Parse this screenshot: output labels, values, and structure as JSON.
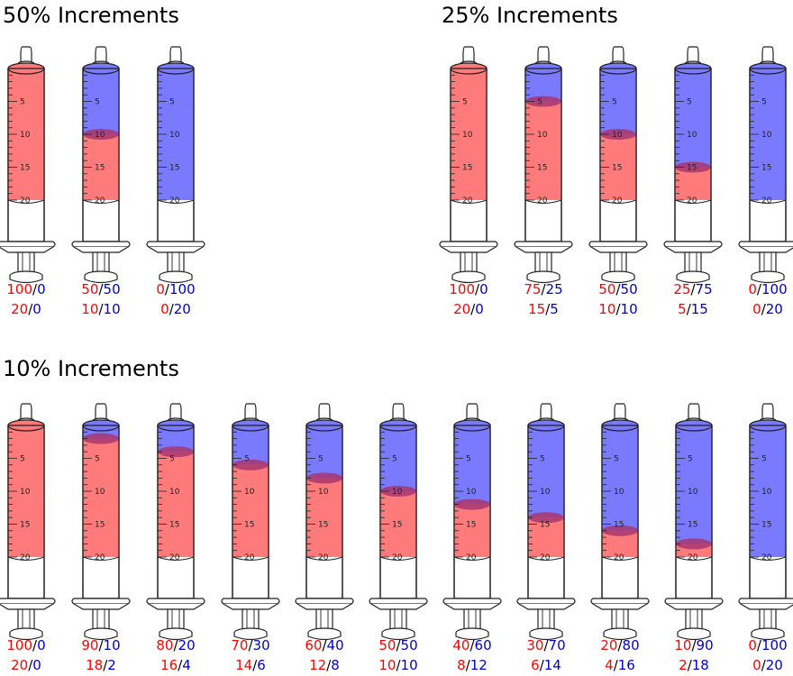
{
  "colors": {
    "red": "#ff0000",
    "blue": "#0000cc",
    "red_fill": "#ff7a7a",
    "blue_fill": "#7a7aff",
    "meniscus": "#a8376e"
  },
  "scale_labels": [
    "5",
    "10",
    "15",
    "20"
  ],
  "groups": [
    {
      "title": "50% Increments",
      "syringes": [
        {
          "red_pct": "100",
          "blue_pct": "0",
          "red_ml": "20",
          "blue_ml": "0"
        },
        {
          "red_pct": "50",
          "blue_pct": "50",
          "red_ml": "10",
          "blue_ml": "10"
        },
        {
          "red_pct": "0",
          "blue_pct": "100",
          "red_ml": "0",
          "blue_ml": "20"
        }
      ]
    },
    {
      "title": "25% Increments",
      "syringes": [
        {
          "red_pct": "100",
          "blue_pct": "0",
          "red_ml": "20",
          "blue_ml": "0"
        },
        {
          "red_pct": "75",
          "blue_pct": "25",
          "red_ml": "15",
          "blue_ml": "5"
        },
        {
          "red_pct": "50",
          "blue_pct": "50",
          "red_ml": "10",
          "blue_ml": "10"
        },
        {
          "red_pct": "25",
          "blue_pct": "75",
          "red_ml": "5",
          "blue_ml": "15"
        },
        {
          "red_pct": "0",
          "blue_pct": "100",
          "red_ml": "0",
          "blue_ml": "20"
        }
      ]
    },
    {
      "title": "10% Increments",
      "syringes": [
        {
          "red_pct": "100",
          "blue_pct": "0",
          "red_ml": "20",
          "blue_ml": "0"
        },
        {
          "red_pct": "90",
          "blue_pct": "10",
          "red_ml": "18",
          "blue_ml": "2"
        },
        {
          "red_pct": "80",
          "blue_pct": "20",
          "red_ml": "16",
          "blue_ml": "4"
        },
        {
          "red_pct": "70",
          "blue_pct": "30",
          "red_ml": "14",
          "blue_ml": "6"
        },
        {
          "red_pct": "60",
          "blue_pct": "40",
          "red_ml": "12",
          "blue_ml": "8"
        },
        {
          "red_pct": "50",
          "blue_pct": "50",
          "red_ml": "10",
          "blue_ml": "10"
        },
        {
          "red_pct": "40",
          "blue_pct": "60",
          "red_ml": "8",
          "blue_ml": "12"
        },
        {
          "red_pct": "30",
          "blue_pct": "70",
          "red_ml": "6",
          "blue_ml": "14"
        },
        {
          "red_pct": "20",
          "blue_pct": "80",
          "red_ml": "4",
          "blue_ml": "16"
        },
        {
          "red_pct": "10",
          "blue_pct": "90",
          "red_ml": "2",
          "blue_ml": "18"
        },
        {
          "red_pct": "0",
          "blue_pct": "100",
          "red_ml": "0",
          "blue_ml": "20"
        }
      ]
    }
  ]
}
